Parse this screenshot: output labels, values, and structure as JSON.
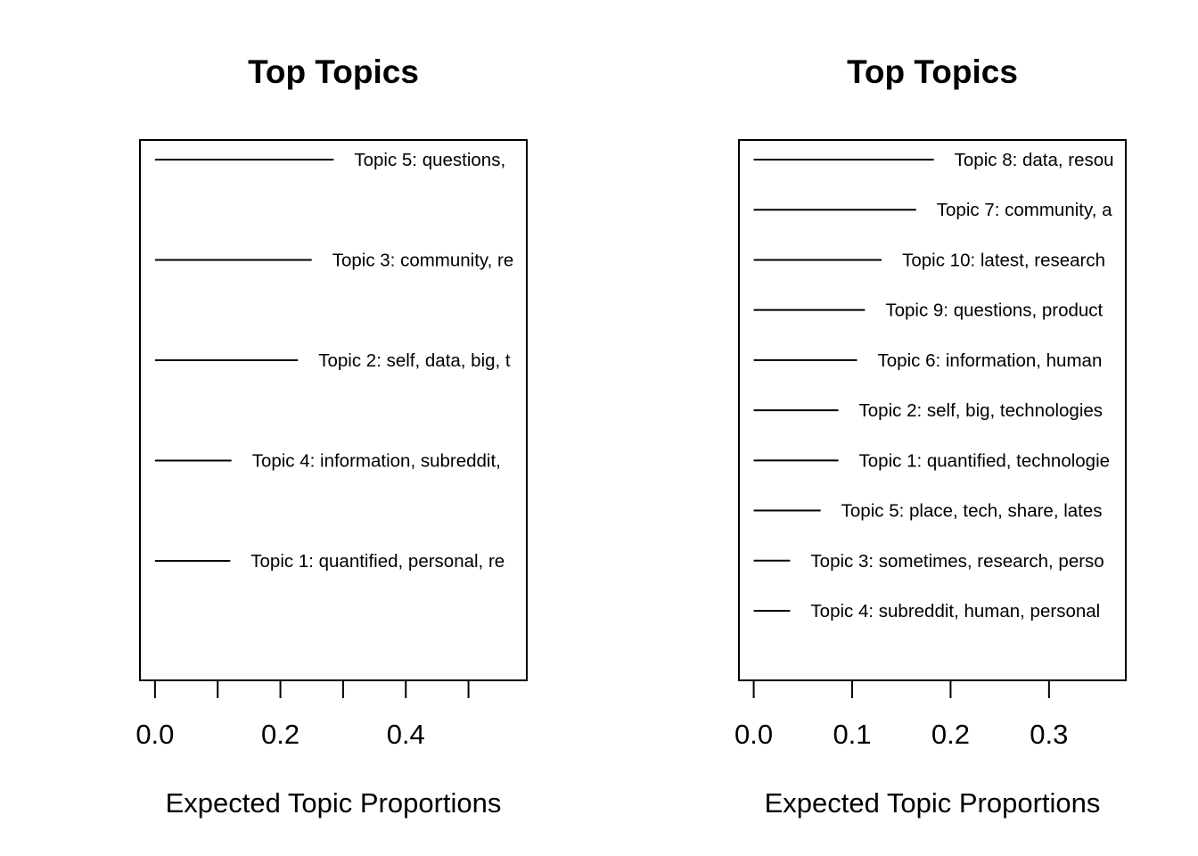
{
  "chart_data": [
    {
      "type": "bar",
      "title": "Top Topics",
      "xlabel": "Expected Topic Proportions",
      "ylabel": "",
      "xlim": [
        -0.024,
        0.593
      ],
      "ticks": [
        0.0,
        0.1,
        0.2,
        0.3,
        0.4,
        0.5
      ],
      "tick_labels": [
        "0.0",
        "",
        "0.2",
        "",
        "0.4",
        ""
      ],
      "grid": false,
      "legend": "none",
      "series": [
        {
          "label": "Topic 5: questions, ",
          "value": 0.285
        },
        {
          "label": "Topic 3: community, re",
          "value": 0.25
        },
        {
          "label": "Topic 2: self, data, big, t",
          "value": 0.228
        },
        {
          "label": "Topic 4: information, subreddit, ",
          "value": 0.122
        },
        {
          "label": "Topic 1: quantified, personal, re",
          "value": 0.12
        }
      ]
    },
    {
      "type": "bar",
      "title": "Top Topics",
      "xlabel": "Expected Topic Proportions",
      "ylabel": "",
      "xlim": [
        -0.015,
        0.378
      ],
      "ticks": [
        0.0,
        0.1,
        0.2,
        0.3
      ],
      "tick_labels": [
        "0.0",
        "0.1",
        "0.2",
        "0.3"
      ],
      "grid": false,
      "legend": "none",
      "series": [
        {
          "label": "Topic 8: data, resou",
          "value": 0.183
        },
        {
          "label": "Topic 7: community, a",
          "value": 0.165
        },
        {
          "label": "Topic 10: latest, research",
          "value": 0.13
        },
        {
          "label": "Topic 9: questions, product",
          "value": 0.113
        },
        {
          "label": "Topic 6: information, human",
          "value": 0.105
        },
        {
          "label": "Topic 2: self, big, technologies",
          "value": 0.086
        },
        {
          "label": "Topic 1: quantified, technologie",
          "value": 0.086
        },
        {
          "label": "Topic 5: place, tech, share, lates",
          "value": 0.068
        },
        {
          "label": "Topic 3: sometimes, research, perso",
          "value": 0.037
        },
        {
          "label": "Topic 4: subreddit, human, personal",
          "value": 0.037
        }
      ]
    }
  ]
}
